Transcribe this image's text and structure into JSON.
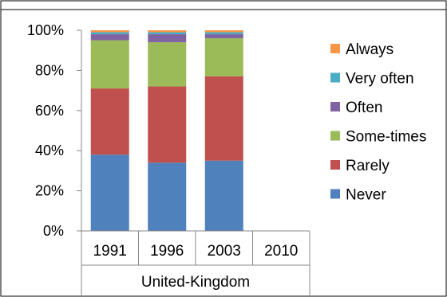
{
  "chart_data": {
    "type": "bar",
    "stacked": true,
    "title": "",
    "xlabel": "",
    "ylabel": "",
    "ylim": [
      0,
      100
    ],
    "y_tick_format": "percent",
    "y_ticks": [
      "0%",
      "20%",
      "40%",
      "60%",
      "80%",
      "100%"
    ],
    "group_label": "United-Kingdom",
    "categories": [
      "1991",
      "1996",
      "2003",
      "2010"
    ],
    "legend_position": "right",
    "series": [
      {
        "name": "Never",
        "color": "#4F81BD",
        "values": [
          38,
          34,
          35,
          null
        ]
      },
      {
        "name": "Rarely",
        "color": "#C0504D",
        "values": [
          33,
          38,
          42,
          null
        ]
      },
      {
        "name": "Some-times",
        "color": "#9BBB59",
        "values": [
          24,
          22,
          19,
          null
        ]
      },
      {
        "name": "Often",
        "color": "#8064A2",
        "values": [
          3,
          4,
          2,
          null
        ]
      },
      {
        "name": "Very often",
        "color": "#4BACC6",
        "values": [
          1,
          1,
          1,
          null
        ]
      },
      {
        "name": "Always",
        "color": "#F79646",
        "values": [
          1,
          1,
          1,
          null
        ]
      }
    ],
    "grid": false
  }
}
